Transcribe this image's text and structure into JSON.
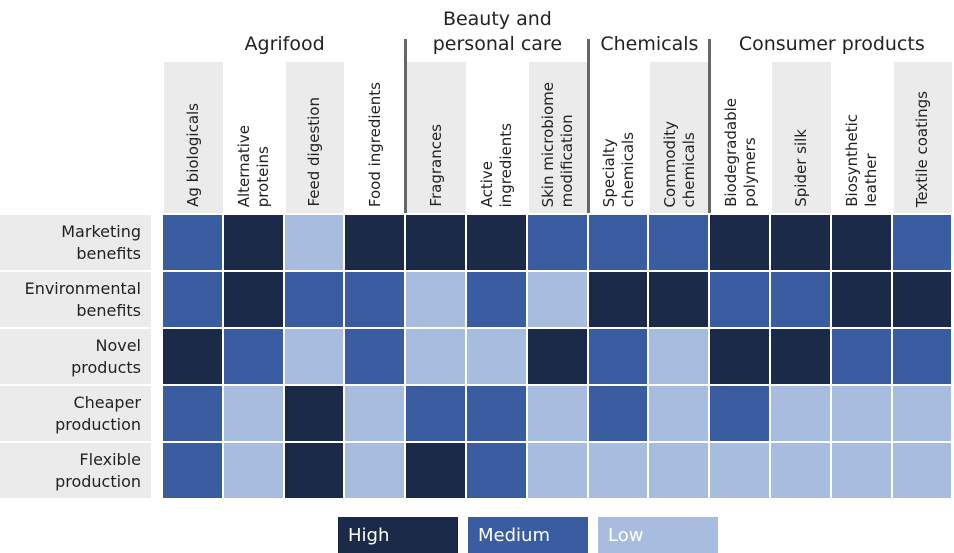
{
  "chart_data": {
    "type": "heatmap",
    "groups": [
      {
        "label": "Agrifood",
        "span": 4
      },
      {
        "label": "Beauty and\npersonal care",
        "span": 3
      },
      {
        "label": "Chemicals",
        "span": 2
      },
      {
        "label": "Consumer products",
        "span": 4
      }
    ],
    "columns": [
      "Ag biologicals",
      "Alternative\nproteins",
      "Feed digestion",
      "Food ingredients",
      "Fragrances",
      "Active\ningredients",
      "Skin microbiome\nmodification",
      "Specialty\nchemicals",
      "Commodity\nchemicals",
      "Biodegradable\npolymers",
      "Spider silk",
      "Biosynthetic\nleather",
      "Textile coatings"
    ],
    "rows": [
      "Marketing\nbenefits",
      "Environmental\nbenefits",
      "Novel\nproducts",
      "Cheaper\nproduction",
      "Flexible\nproduction"
    ],
    "legend": [
      {
        "label": "High",
        "color": "#1c2a4a"
      },
      {
        "label": "Medium",
        "color": "#3a5da2"
      },
      {
        "label": "Low",
        "color": "#a8bce0"
      }
    ],
    "values": [
      [
        "Medium",
        "High",
        "Low",
        "High",
        "High",
        "High",
        "Medium",
        "Medium",
        "Medium",
        "High",
        "High",
        "High",
        "Medium"
      ],
      [
        "Medium",
        "High",
        "Medium",
        "Medium",
        "Low",
        "Medium",
        "Low",
        "High",
        "High",
        "Medium",
        "Medium",
        "High",
        "High"
      ],
      [
        "High",
        "Medium",
        "Low",
        "Medium",
        "Low",
        "Low",
        "High",
        "Medium",
        "Low",
        "High",
        "High",
        "Medium",
        "Medium"
      ],
      [
        "Medium",
        "Low",
        "High",
        "Low",
        "Medium",
        "Medium",
        "Low",
        "Medium",
        "Low",
        "Medium",
        "Low",
        "Low",
        "Low"
      ],
      [
        "Medium",
        "Low",
        "High",
        "Low",
        "High",
        "Medium",
        "Low",
        "Low",
        "Low",
        "Low",
        "Low",
        "Low",
        "Low"
      ]
    ]
  }
}
